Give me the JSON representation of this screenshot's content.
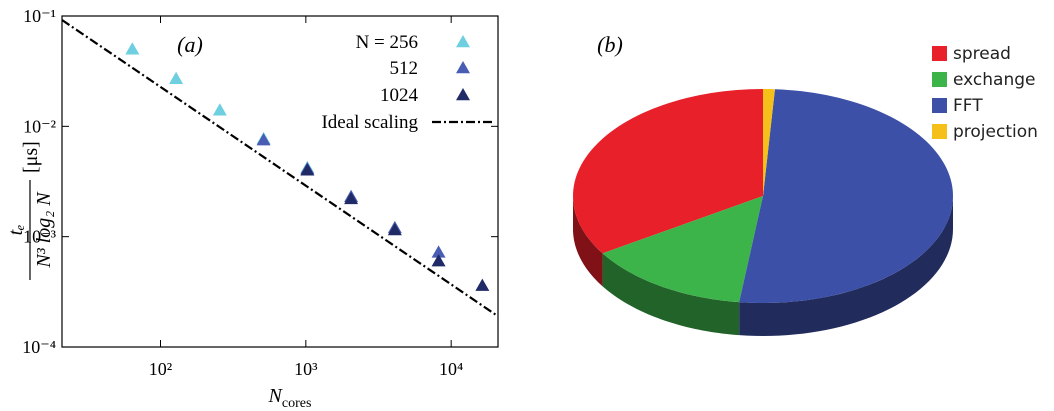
{
  "chart_data": [
    {
      "type": "scatter",
      "annotation": "(a)",
      "xlabel": {
        "symbol": "N",
        "subscript": "cores"
      },
      "ylabel": {
        "numerator": "tₑ",
        "denominator": "N³ log₂ N",
        "unit": "[μs]"
      },
      "xscale": "log",
      "yscale": "log",
      "xlim": [
        21,
        21000
      ],
      "ylim": [
        0.0001,
        0.1
      ],
      "xticks": [
        {
          "value": 100,
          "label": "10²"
        },
        {
          "value": 1000,
          "label": "10³"
        },
        {
          "value": 10000,
          "label": "10⁴"
        }
      ],
      "yticks": [
        {
          "value": 0.0001,
          "label": "10⁻⁴"
        },
        {
          "value": 0.001,
          "label": "10⁻³"
        },
        {
          "value": 0.01,
          "label": "10⁻²"
        },
        {
          "value": 0.1,
          "label": "10⁻¹"
        }
      ],
      "legend": "upper right",
      "series": [
        {
          "name": "N = 256",
          "color": "#6dcfe0",
          "marker": "triangle",
          "x": [
            64,
            128,
            256,
            512,
            1024
          ],
          "y": [
            0.05,
            0.027,
            0.014,
            0.0077,
            0.0042
          ]
        },
        {
          "name": "512",
          "color": "#4a5db5",
          "marker": "triangle",
          "x": [
            512,
            1024,
            2048,
            4096,
            8192
          ],
          "y": [
            0.0075,
            0.0041,
            0.0023,
            0.0012,
            0.00072
          ]
        },
        {
          "name": "1024",
          "color": "#1f2a66",
          "marker": "triangle",
          "x": [
            1024,
            2048,
            4096,
            8192,
            16384
          ],
          "y": [
            0.004,
            0.0022,
            0.00115,
            0.0006,
            0.00036
          ]
        },
        {
          "name": "Ideal scaling",
          "color": "#000000",
          "marker": "dash-dot-line",
          "x": [
            21,
            21000
          ],
          "y": [
            0.092,
            0.00019
          ]
        }
      ]
    },
    {
      "type": "pie",
      "annotation": "(b)",
      "style": "3d",
      "start_angle": 90,
      "direction": "counterclockwise",
      "categories": [
        "spread",
        "exchange",
        "FFT",
        "projection"
      ],
      "values": [
        34,
        14,
        51,
        1
      ],
      "colors": [
        "#e8202a",
        "#3cb44a",
        "#3c50a8",
        "#f5c01a"
      ],
      "legend": "upper right"
    }
  ]
}
